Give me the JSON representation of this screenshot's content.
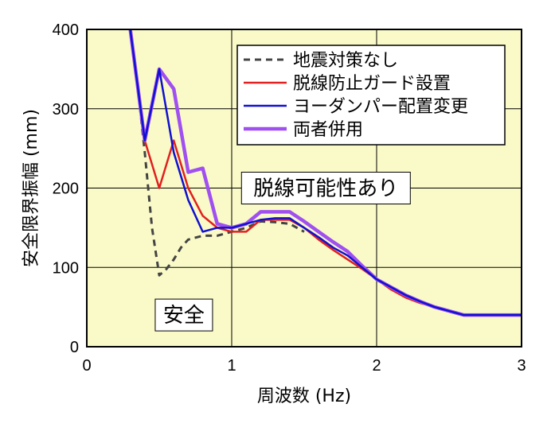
{
  "chart_data": {
    "type": "line",
    "xlabel": "周波数 (Hz)",
    "ylabel": "安全限界振幅 (mm)",
    "xlim": [
      0,
      3
    ],
    "ylim": [
      0,
      400
    ],
    "x_ticks": [
      0,
      1,
      2,
      3
    ],
    "y_ticks": [
      0,
      100,
      200,
      300,
      400
    ],
    "grid": true,
    "background": "#fafac8",
    "legend_position": "top-right",
    "series": [
      {
        "name": "地震対策なし",
        "color": "#444444",
        "style": "dashed",
        "x": [
          0.3,
          0.35,
          0.4,
          0.45,
          0.5,
          0.55,
          0.6,
          0.65,
          0.7,
          0.8,
          0.9,
          1.0,
          1.1,
          1.2,
          1.3,
          1.4,
          1.5
        ],
        "y": [
          400,
          330,
          245,
          150,
          90,
          98,
          110,
          125,
          135,
          140,
          140,
          145,
          150,
          158,
          157,
          155,
          145
        ]
      },
      {
        "name": "脱線防止ガード設置",
        "color": "#e02020",
        "style": "solid",
        "x": [
          0.3,
          0.35,
          0.4,
          0.5,
          0.6,
          0.7,
          0.8,
          0.9,
          1.0,
          1.1,
          1.2,
          1.3,
          1.4,
          1.5,
          1.6,
          1.7,
          1.8,
          1.9,
          2.0,
          2.1,
          2.2,
          2.3,
          2.4,
          2.5,
          2.6,
          2.7,
          2.8,
          2.9,
          3.0
        ],
        "y": [
          400,
          330,
          260,
          200,
          260,
          200,
          165,
          150,
          145,
          145,
          160,
          160,
          160,
          150,
          135,
          122,
          110,
          98,
          85,
          72,
          62,
          55,
          50,
          45,
          40,
          40,
          40,
          40,
          40
        ]
      },
      {
        "name": "ヨーダンパー配置変更",
        "color": "#1010d0",
        "style": "solid",
        "x": [
          0.3,
          0.35,
          0.4,
          0.5,
          0.6,
          0.7,
          0.8,
          0.9,
          1.0,
          1.1,
          1.2,
          1.3,
          1.4,
          1.5,
          1.6,
          1.7,
          1.8,
          1.9,
          2.0,
          2.1,
          2.2,
          2.3,
          2.4,
          2.5,
          2.6,
          2.7,
          2.8,
          2.9,
          3.0
        ],
        "y": [
          400,
          330,
          260,
          350,
          245,
          185,
          145,
          150,
          150,
          155,
          160,
          162,
          162,
          150,
          138,
          125,
          115,
          100,
          85,
          75,
          65,
          57,
          50,
          45,
          40,
          40,
          40,
          40,
          40
        ]
      },
      {
        "name": "両者併用",
        "color": "#a050f0",
        "style": "solid-thick",
        "x": [
          0.3,
          0.35,
          0.4,
          0.5,
          0.6,
          0.7,
          0.8,
          0.9,
          1.0,
          1.1,
          1.2,
          1.3,
          1.4,
          1.5,
          1.6,
          1.7,
          1.8,
          1.9,
          2.0,
          2.1,
          2.2,
          2.3,
          2.4,
          2.5,
          2.6,
          2.7,
          2.8,
          2.9,
          3.0
        ],
        "y": [
          400,
          330,
          260,
          350,
          325,
          220,
          225,
          155,
          150,
          155,
          170,
          170,
          170,
          158,
          145,
          132,
          120,
          102,
          85,
          75,
          65,
          57,
          50,
          45,
          40,
          40,
          40,
          40,
          40
        ]
      }
    ],
    "annotations": [
      {
        "text": "脱線可能性あり",
        "x": 1.65,
        "y": 200
      },
      {
        "text": "安全",
        "x": 0.67,
        "y": 40
      }
    ]
  }
}
